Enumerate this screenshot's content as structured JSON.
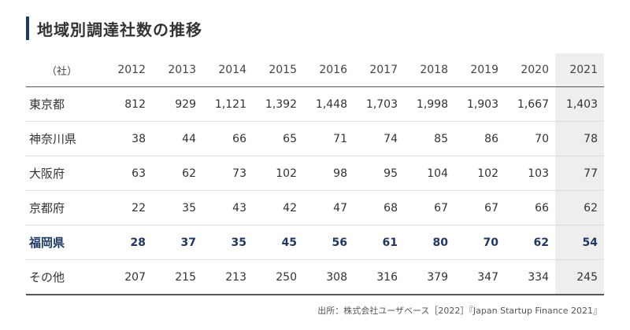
{
  "chart_data": {
    "type": "table",
    "title": "地域別調達社数の推移",
    "unit_label": "（社）",
    "columns": [
      "2012",
      "2013",
      "2014",
      "2015",
      "2016",
      "2017",
      "2018",
      "2019",
      "2020",
      "2021"
    ],
    "highlight_column": "2021",
    "highlight_row": "福岡県",
    "highlight_color": "#1f3864",
    "rows": [
      {
        "label": "東京都",
        "values": [
          "812",
          "929",
          "1,121",
          "1,392",
          "1,448",
          "1,703",
          "1,998",
          "1,903",
          "1,667",
          "1,403"
        ]
      },
      {
        "label": "神奈川県",
        "values": [
          "38",
          "44",
          "66",
          "65",
          "71",
          "74",
          "85",
          "86",
          "70",
          "78"
        ]
      },
      {
        "label": "大阪府",
        "values": [
          "63",
          "62",
          "73",
          "102",
          "98",
          "95",
          "104",
          "102",
          "103",
          "77"
        ]
      },
      {
        "label": "京都府",
        "values": [
          "22",
          "35",
          "43",
          "42",
          "47",
          "68",
          "67",
          "67",
          "66",
          "62"
        ]
      },
      {
        "label": "福岡県",
        "values": [
          "28",
          "37",
          "35",
          "45",
          "56",
          "61",
          "80",
          "70",
          "62",
          "54"
        ]
      },
      {
        "label": "その他",
        "values": [
          "207",
          "215",
          "213",
          "250",
          "308",
          "316",
          "379",
          "347",
          "334",
          "245"
        ]
      }
    ],
    "source": "出所：株式会社ユーザベース［2022］『Japan Startup Finance 2021』"
  }
}
